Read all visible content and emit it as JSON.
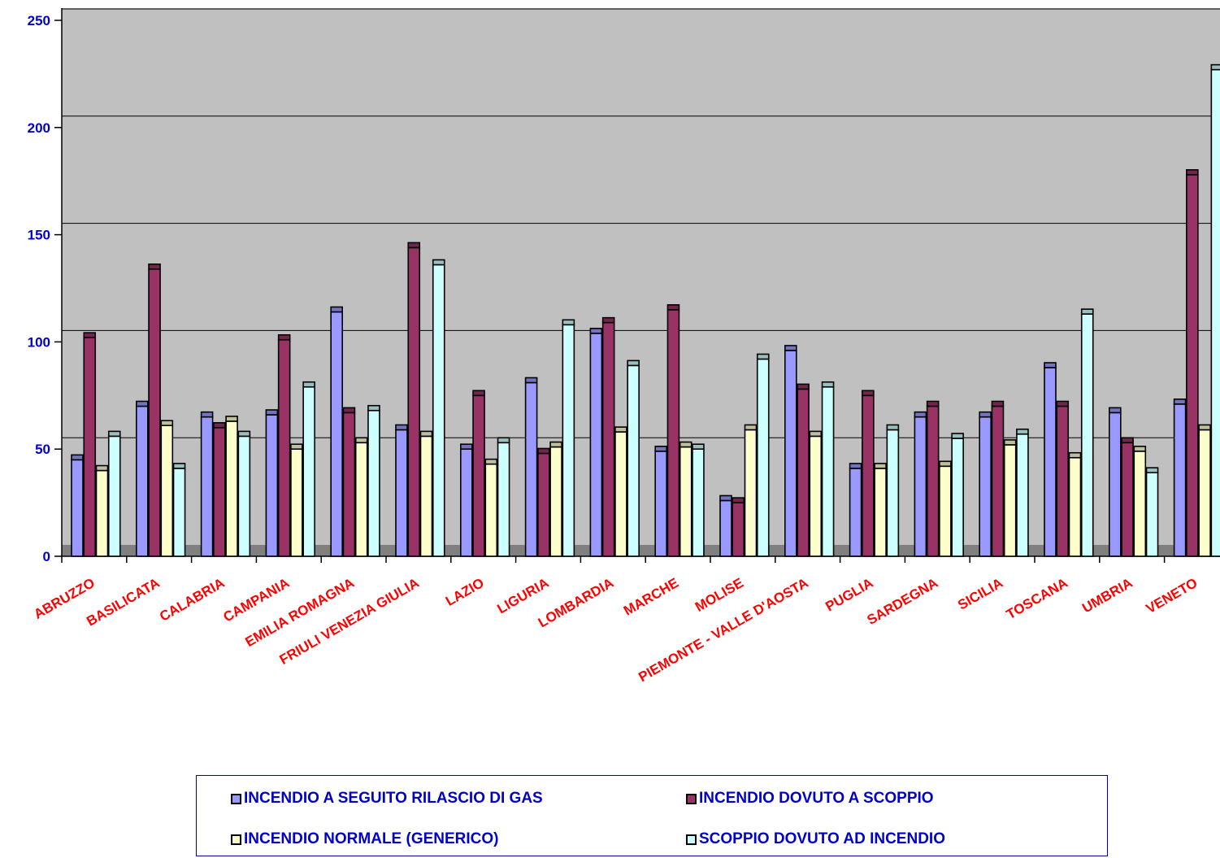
{
  "chart_data": {
    "type": "bar",
    "title": "",
    "xlabel": "",
    "ylabel": "",
    "ylim": [
      0,
      250
    ],
    "yticks": [
      "0",
      "50",
      "100",
      "150",
      "200",
      "250"
    ],
    "grid": true,
    "legend_position": "bottom",
    "categories": [
      "ABRUZZO",
      "BASILICATA",
      "CALABRIA",
      "CAMPANIA",
      "EMILIA ROMAGNA",
      "FRIULI VENEZIA GIULIA",
      "LAZIO",
      "LIGURIA",
      "LOMBARDIA",
      "MARCHE",
      "MOLISE",
      "PIEMONTE - VALLE D'AOSTA",
      "PUGLIA",
      "SARDEGNA",
      "SICILIA",
      "TOSCANA",
      "UMBRIA",
      "VENETO"
    ],
    "series": [
      {
        "name": "INCENDIO A SEGUITO RILASCIO DI GAS",
        "color": "#9999ff",
        "values": [
          45,
          70,
          65,
          66,
          114,
          59,
          50,
          81,
          104,
          49,
          26,
          96,
          41,
          65,
          65,
          88,
          67,
          71
        ]
      },
      {
        "name": "INCENDIO DOVUTO A SCOPPIO",
        "color": "#993366",
        "values": [
          102,
          134,
          60,
          101,
          67,
          144,
          75,
          48,
          109,
          115,
          25,
          78,
          75,
          70,
          70,
          70,
          53,
          178
        ]
      },
      {
        "name": "INCENDIO NORMALE (GENERICO)",
        "color": "#ffffcc",
        "values": [
          40,
          61,
          63,
          50,
          53,
          56,
          43,
          51,
          58,
          51,
          59,
          56,
          41,
          42,
          52,
          46,
          49,
          59
        ]
      },
      {
        "name": "SCOPPIO DOVUTO AD INCENDIO",
        "color": "#ccffff",
        "values": [
          56,
          41,
          56,
          79,
          68,
          136,
          53,
          108,
          89,
          50,
          92,
          79,
          59,
          55,
          57,
          113,
          39,
          227
        ]
      }
    ]
  }
}
